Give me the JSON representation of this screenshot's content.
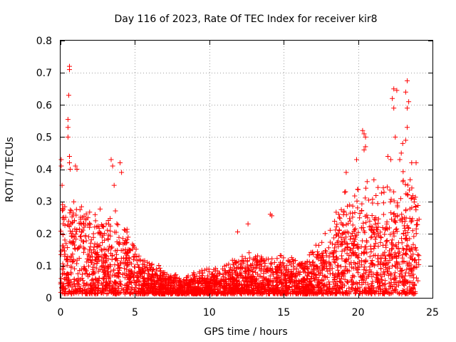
{
  "chart_data": {
    "type": "scatter",
    "title": "Day 116 of 2023, Rate Of TEC Index for receiver kir8",
    "xlabel": "GPS time / hours",
    "ylabel": "ROTI / TECUs",
    "xlim": [
      0,
      25
    ],
    "ylim": [
      0,
      0.8
    ],
    "xticks": [
      0,
      5,
      10,
      15,
      20,
      25
    ],
    "yticks": [
      0,
      0.1,
      0.2,
      0.3,
      0.4,
      0.5,
      0.6,
      0.7,
      0.8
    ],
    "grid": true,
    "marker": "+",
    "color": "#ff0000",
    "envelope": {
      "description": "Approximate upper envelope of the dense point cloud (hour, ROTI)",
      "hours": [
        0,
        0.5,
        1,
        2,
        3,
        4,
        5,
        6,
        7,
        8,
        9,
        10,
        11,
        12,
        13,
        14,
        15,
        16,
        17,
        18,
        19,
        20,
        21,
        22,
        23,
        24
      ],
      "upper": [
        0.3,
        0.28,
        0.27,
        0.26,
        0.25,
        0.22,
        0.15,
        0.1,
        0.08,
        0.06,
        0.07,
        0.08,
        0.09,
        0.12,
        0.13,
        0.12,
        0.11,
        0.11,
        0.13,
        0.18,
        0.28,
        0.33,
        0.3,
        0.31,
        0.35,
        0.3
      ]
    },
    "points": [
      {
        "x": 0.6,
        "y": 0.72
      },
      {
        "x": 0.6,
        "y": 0.71
      },
      {
        "x": 0.55,
        "y": 0.63
      },
      {
        "x": 0.5,
        "y": 0.555
      },
      {
        "x": 0.5,
        "y": 0.53
      },
      {
        "x": 0.5,
        "y": 0.5
      },
      {
        "x": 0.6,
        "y": 0.44
      },
      {
        "x": 0.6,
        "y": 0.42
      },
      {
        "x": 0.65,
        "y": 0.4
      },
      {
        "x": 0.05,
        "y": 0.43
      },
      {
        "x": 0.05,
        "y": 0.41
      },
      {
        "x": 0.1,
        "y": 0.35
      },
      {
        "x": 1.0,
        "y": 0.41
      },
      {
        "x": 1.1,
        "y": 0.4
      },
      {
        "x": 3.4,
        "y": 0.43
      },
      {
        "x": 3.5,
        "y": 0.41
      },
      {
        "x": 4.0,
        "y": 0.42
      },
      {
        "x": 4.1,
        "y": 0.39
      },
      {
        "x": 3.6,
        "y": 0.35
      },
      {
        "x": 14.1,
        "y": 0.26
      },
      {
        "x": 14.2,
        "y": 0.255
      },
      {
        "x": 12.6,
        "y": 0.23
      },
      {
        "x": 11.9,
        "y": 0.205
      },
      {
        "x": 19.9,
        "y": 0.43
      },
      {
        "x": 19.2,
        "y": 0.39
      },
      {
        "x": 20.3,
        "y": 0.52
      },
      {
        "x": 20.4,
        "y": 0.51
      },
      {
        "x": 20.5,
        "y": 0.5
      },
      {
        "x": 20.5,
        "y": 0.47
      },
      {
        "x": 20.4,
        "y": 0.46
      },
      {
        "x": 22.0,
        "y": 0.44
      },
      {
        "x": 22.2,
        "y": 0.43
      },
      {
        "x": 22.4,
        "y": 0.65
      },
      {
        "x": 22.6,
        "y": 0.645
      },
      {
        "x": 22.3,
        "y": 0.62
      },
      {
        "x": 22.4,
        "y": 0.59
      },
      {
        "x": 22.5,
        "y": 0.5
      },
      {
        "x": 23.3,
        "y": 0.675
      },
      {
        "x": 23.2,
        "y": 0.64
      },
      {
        "x": 23.4,
        "y": 0.61
      },
      {
        "x": 23.3,
        "y": 0.59
      },
      {
        "x": 23.3,
        "y": 0.53
      },
      {
        "x": 23.2,
        "y": 0.49
      },
      {
        "x": 23.0,
        "y": 0.48
      },
      {
        "x": 23.6,
        "y": 0.42
      },
      {
        "x": 23.9,
        "y": 0.42
      },
      {
        "x": 22.9,
        "y": 0.45
      },
      {
        "x": 22.8,
        "y": 0.43
      }
    ]
  }
}
